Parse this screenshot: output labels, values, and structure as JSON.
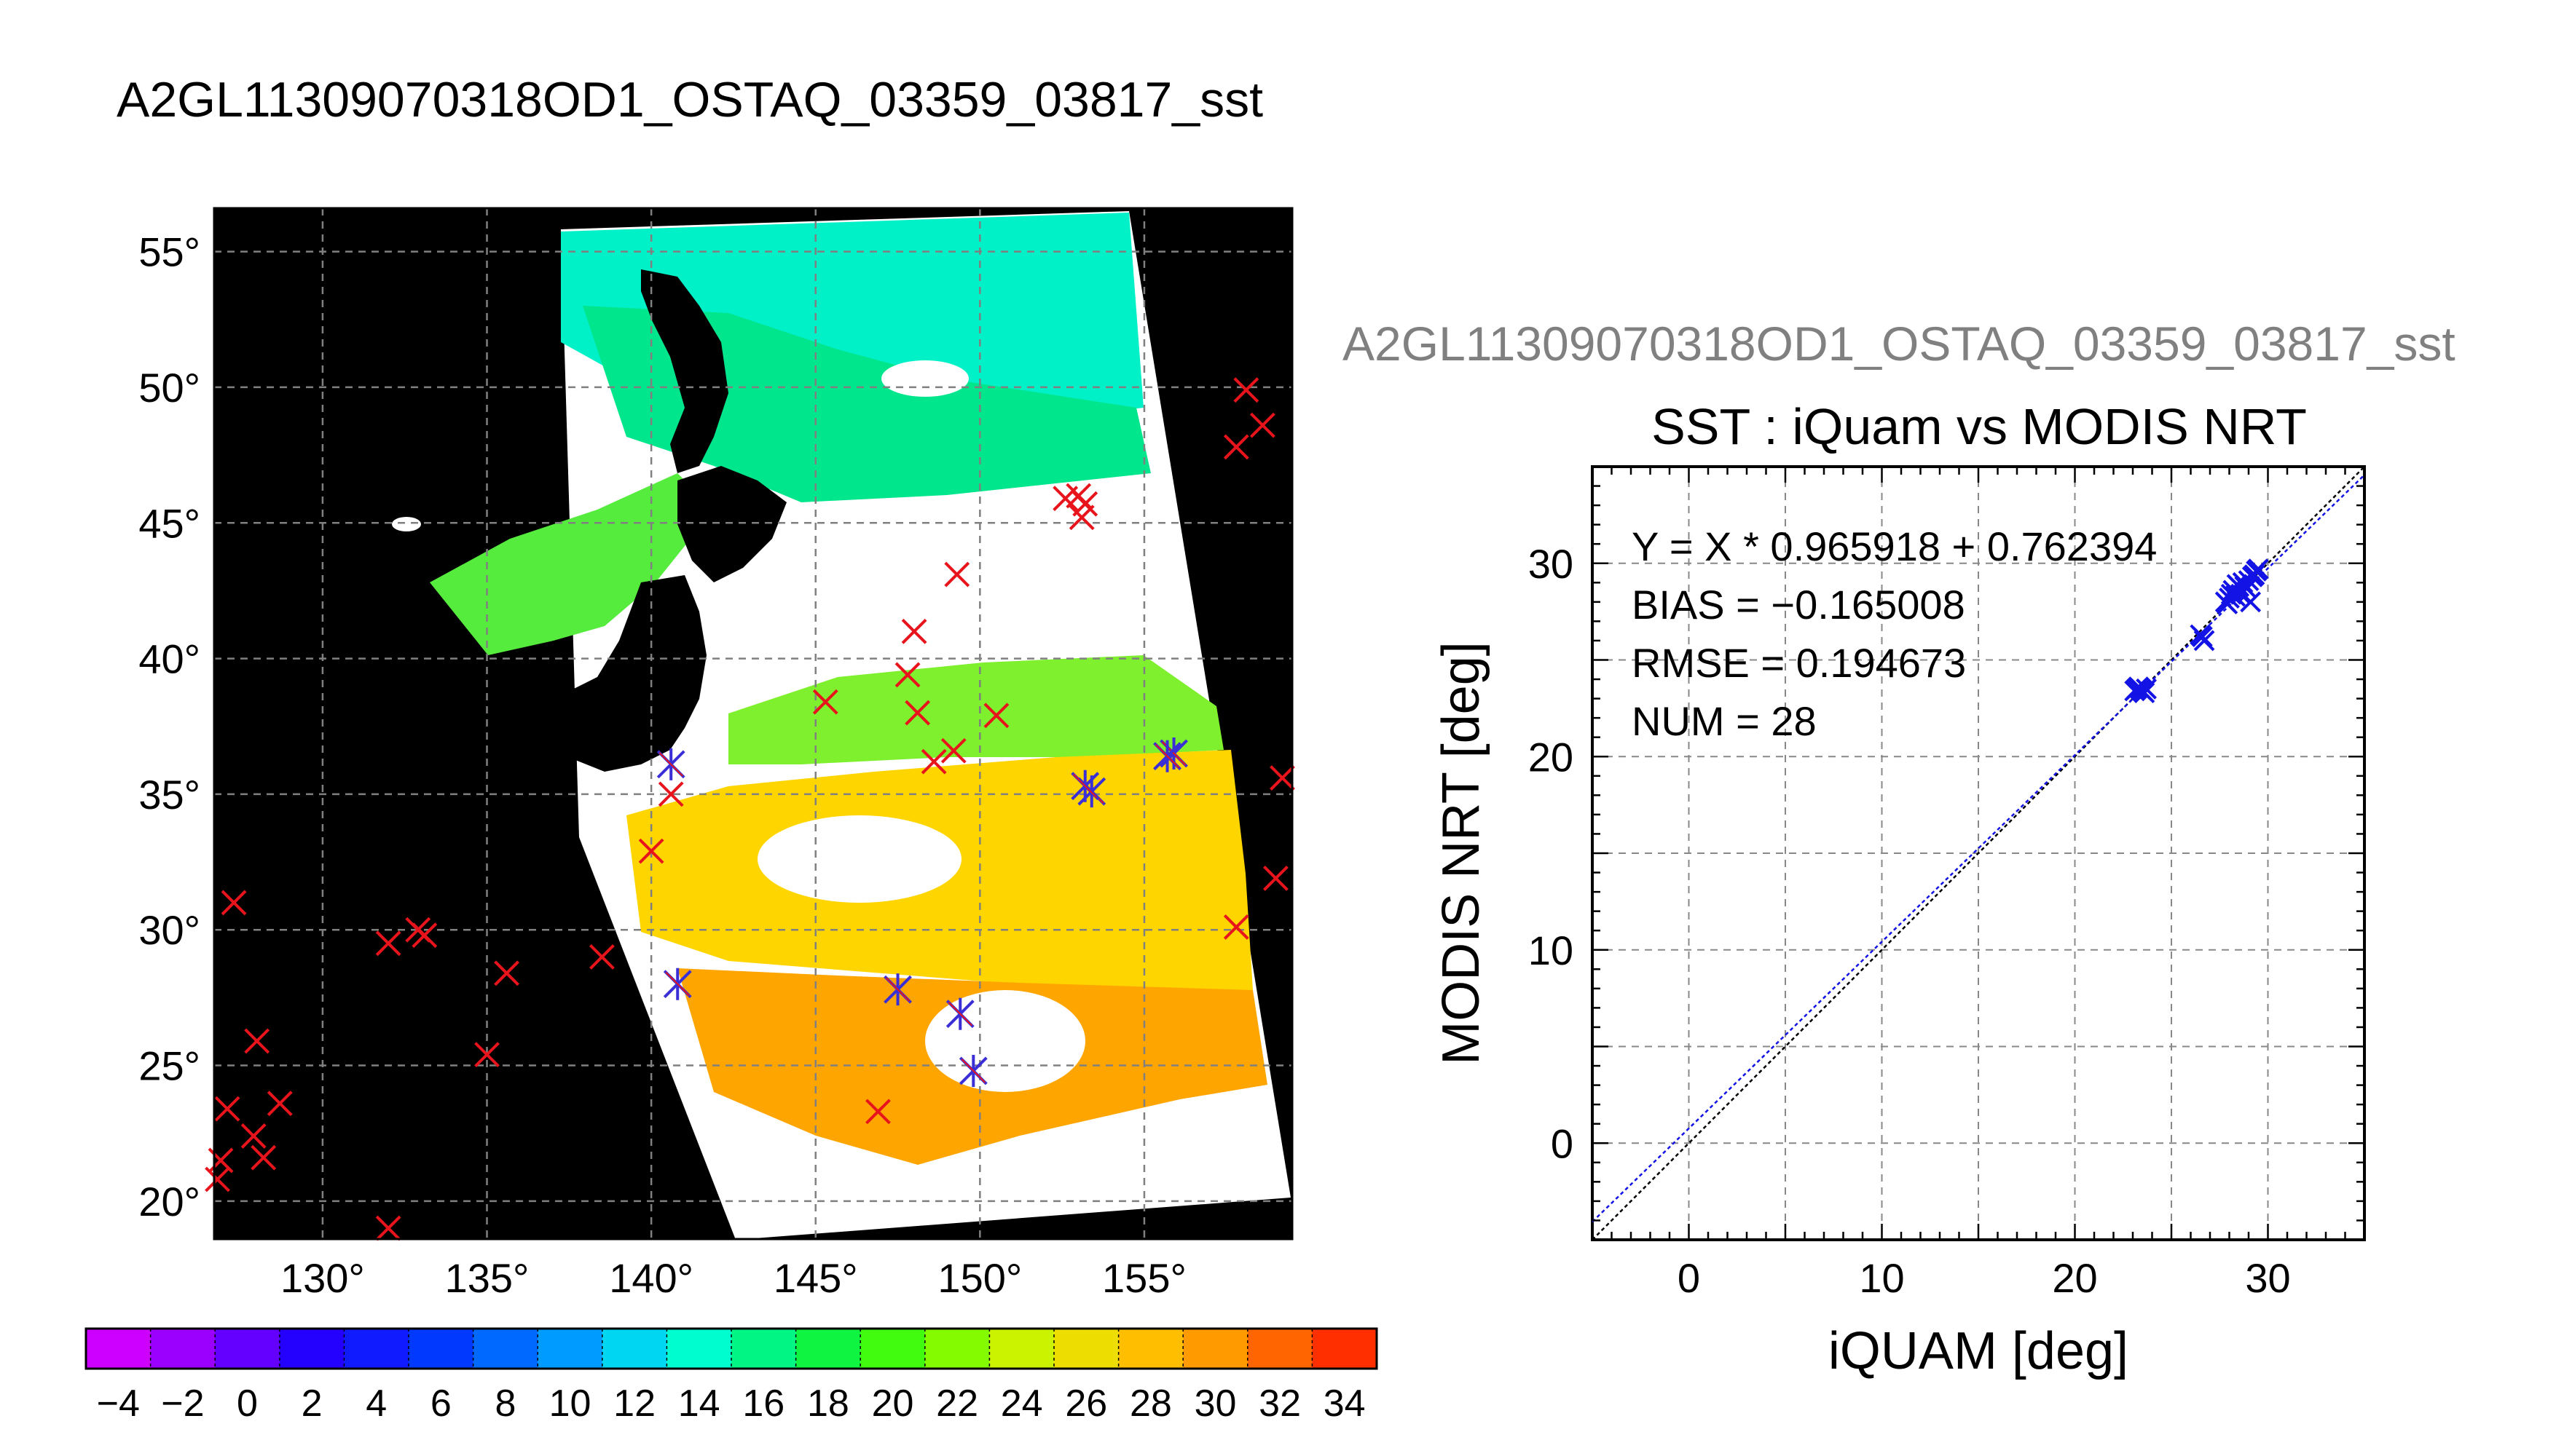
{
  "page_title": "A2GL11309070318OD1_OSTAQ_03359_03817_sst",
  "chart_data": [
    {
      "type": "map",
      "title": "A2GL11309070318OD1_OSTAQ_03359_03817_sst",
      "lon_ticks": [
        "130°",
        "135°",
        "140°",
        "145°",
        "150°",
        "155°"
      ],
      "lat_ticks": [
        "20°",
        "25°",
        "30°",
        "35°",
        "40°",
        "45°",
        "50°",
        "55°"
      ],
      "lon_values": [
        130,
        135,
        140,
        145,
        150,
        155
      ],
      "lat_values": [
        20,
        25,
        30,
        35,
        40,
        45,
        50,
        55
      ],
      "xlim": [
        126.7,
        159.5
      ],
      "ylim": [
        18.6,
        56.6
      ],
      "colorbar": {
        "min": -5,
        "max": 35,
        "step": 2,
        "tick_labels": [
          "−4",
          "−2",
          "0",
          "2",
          "4",
          "6",
          "8",
          "10",
          "12",
          "14",
          "16",
          "18",
          "20",
          "22",
          "24",
          "26",
          "28",
          "30",
          "32",
          "34"
        ],
        "tick_values": [
          -4,
          -2,
          0,
          2,
          4,
          6,
          8,
          10,
          12,
          14,
          16,
          18,
          20,
          22,
          24,
          26,
          28,
          30,
          32,
          34
        ]
      },
      "markers": {
        "rejected_x_color": "#e8141c",
        "matched_asterisk_color": "#3a2fd6",
        "rejected_x": [
          [
            158.1,
            49.9
          ],
          [
            158.6,
            48.6
          ],
          [
            157.8,
            47.8
          ],
          [
            152.6,
            45.9
          ],
          [
            153.0,
            46.0
          ],
          [
            153.2,
            45.7
          ],
          [
            153.1,
            45.2
          ],
          [
            149.3,
            43.1
          ],
          [
            148.0,
            41.0
          ],
          [
            147.8,
            39.4
          ],
          [
            148.1,
            38.0
          ],
          [
            150.5,
            37.9
          ],
          [
            145.3,
            38.4
          ],
          [
            149.2,
            36.6
          ],
          [
            148.6,
            36.2
          ],
          [
            140.6,
            35.0
          ],
          [
            140.0,
            32.9
          ],
          [
            159.2,
            35.6
          ],
          [
            159.0,
            31.9
          ],
          [
            157.8,
            30.1
          ],
          [
            138.5,
            29.0
          ],
          [
            135.6,
            28.4
          ],
          [
            133.1,
            29.8
          ],
          [
            132.9,
            30.0
          ],
          [
            132.0,
            29.5
          ],
          [
            127.3,
            31.0
          ],
          [
            128.0,
            25.9
          ],
          [
            128.7,
            23.6
          ],
          [
            127.1,
            23.4
          ],
          [
            127.9,
            22.4
          ],
          [
            128.2,
            21.6
          ],
          [
            126.9,
            21.5
          ],
          [
            126.8,
            20.8
          ],
          [
            132.0,
            19.0
          ],
          [
            135.0,
            25.4
          ],
          [
            146.9,
            23.3
          ]
        ],
        "matched": [
          [
            140.6,
            36.1
          ],
          [
            153.4,
            35.1
          ],
          [
            153.2,
            35.3
          ],
          [
            155.9,
            36.5
          ],
          [
            155.7,
            36.4
          ],
          [
            140.8,
            28.0
          ],
          [
            147.5,
            27.8
          ],
          [
            149.4,
            26.9
          ],
          [
            149.8,
            24.8
          ]
        ]
      }
    },
    {
      "type": "scatter",
      "suptitle": "A2GL11309070318OD1_OSTAQ_03359_03817_sst",
      "title": "SST : iQuam vs MODIS NRT",
      "xlabel": "iQUAM [deg]",
      "ylabel": "MODIS NRT [deg]",
      "xlim": [
        -5,
        35
      ],
      "ylim": [
        -5,
        35
      ],
      "xticks": [
        "0",
        "10",
        "20",
        "30"
      ],
      "yticks": [
        "0",
        "10",
        "20",
        "30"
      ],
      "tick_values": [
        0,
        10,
        20,
        30
      ],
      "grid": true,
      "stats": {
        "fit": "Y = X * 0.965918 + 0.762394",
        "bias": "BIAS = −0.165008",
        "rmse": "RMSE = 0.194673",
        "num": "NUM = 28"
      },
      "fit_line": {
        "slope": 0.965918,
        "intercept": 0.762394
      },
      "point_color": "#1313e6",
      "points": [
        [
          23.2,
          23.5
        ],
        [
          23.4,
          23.5
        ],
        [
          23.5,
          23.4
        ],
        [
          23.3,
          23.6
        ],
        [
          23.6,
          23.3
        ],
        [
          26.6,
          26.2
        ],
        [
          26.7,
          26.0
        ],
        [
          27.8,
          28.0
        ],
        [
          28.0,
          28.2
        ],
        [
          28.2,
          28.6
        ],
        [
          28.4,
          28.9
        ],
        [
          28.6,
          28.4
        ],
        [
          28.8,
          28.8
        ],
        [
          29.0,
          29.1
        ],
        [
          29.2,
          29.3
        ],
        [
          29.4,
          29.6
        ],
        [
          29.1,
          28.0
        ],
        [
          28.5,
          28.8
        ],
        [
          27.9,
          27.9
        ],
        [
          28.3,
          28.3
        ],
        [
          28.7,
          29.0
        ],
        [
          29.3,
          29.4
        ],
        [
          28.1,
          28.4
        ],
        [
          28.9,
          28.7
        ],
        [
          29.5,
          29.7
        ],
        [
          26.5,
          26.3
        ],
        [
          23.1,
          23.4
        ],
        [
          23.7,
          23.5
        ]
      ]
    }
  ]
}
